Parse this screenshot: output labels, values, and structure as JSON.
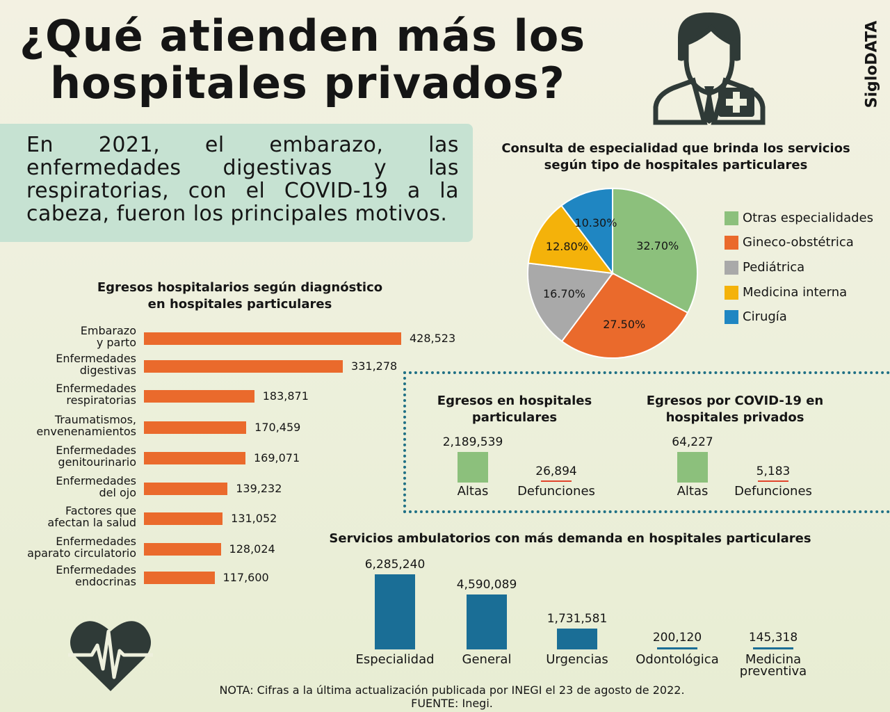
{
  "title": {
    "line1": "¿Qué atienden más los",
    "line2": "hospitales privados?"
  },
  "brand": "SigloDATA",
  "icons": {
    "doctor": "doctor-icon",
    "heart": "heartbeat-icon"
  },
  "lead": "En 2021, el embarazo, las enfermedades digestivas y las respiratorias, con el COVID-19 a la cabeza, fueron los principales motivos.",
  "chart_data": [
    {
      "type": "pie",
      "title": "Consulta de especialidad que brinda los servicios según tipo de hospitales particulares",
      "categories": [
        "Otras especialidades",
        "Gineco-obstétrica",
        "Pediátrica",
        "Medicina interna",
        "Cirugía"
      ],
      "values": [
        32.7,
        27.5,
        16.7,
        12.8,
        10.3
      ],
      "labels": [
        "32.70%",
        "27.50%",
        "16.70%",
        "12.80%",
        "10.30%"
      ],
      "colors": [
        "#8cc07c",
        "#ea6a2c",
        "#a9a9a9",
        "#f4b20a",
        "#1f86c2"
      ],
      "legend": "right"
    },
    {
      "type": "bar",
      "orientation": "horizontal",
      "title": "Egresos hospitalarios según diagnóstico en hospitales particulares",
      "categories": [
        "Embarazo y parto",
        "Enfermedades digestivas",
        "Enfermedades respiratorias",
        "Traumatismos, envenenamientos",
        "Enfermedades genitourinario",
        "Enfermedades del ojo",
        "Factores que afectan la salud",
        "Enfermedades aparato circulatorio",
        "Enfermedades endocrinas"
      ],
      "label_lines": [
        [
          "Embarazo",
          "y parto"
        ],
        [
          "Enfermedades",
          "digestivas"
        ],
        [
          "Enfermedades",
          "respiratorias"
        ],
        [
          "Traumatismos,",
          "envenenamientos"
        ],
        [
          "Enfermedades",
          "genitourinario"
        ],
        [
          "Enfermedades",
          "del ojo"
        ],
        [
          "Factores que",
          "afectan la salud"
        ],
        [
          "Enfermedades",
          "aparato circulatorio"
        ],
        [
          "Enfermedades",
          "endocrinas"
        ]
      ],
      "values": [
        428523,
        331278,
        183871,
        170459,
        169071,
        139232,
        131052,
        128024,
        117600
      ],
      "value_labels": [
        "428,523",
        "331,278",
        "183,871",
        "170,459",
        "169,071",
        "139,232",
        "131,052",
        "128,024",
        "117,600"
      ],
      "color": "#ea6a2c"
    },
    {
      "type": "bar",
      "title": "Egresos en hospitales particulares",
      "categories": [
        "Altas",
        "Defunciones"
      ],
      "values": [
        2189539,
        26894
      ],
      "value_labels": [
        "2,189,539",
        "26,894"
      ],
      "colors": [
        "#8cc07c",
        "#e1442c"
      ]
    },
    {
      "type": "bar",
      "title": "Egresos por COVID-19 en hospitales privados",
      "categories": [
        "Altas",
        "Defunciones"
      ],
      "values": [
        64227,
        5183
      ],
      "value_labels": [
        "64,227",
        "5,183"
      ],
      "colors": [
        "#8cc07c",
        "#e1442c"
      ]
    },
    {
      "type": "bar",
      "title": "Servicios ambulatorios con más demanda en hospitales particulares",
      "categories": [
        "Especialidad",
        "General",
        "Urgencias",
        "Odontológica",
        "Medicina preventiva"
      ],
      "label_lines": [
        [
          "Especialidad"
        ],
        [
          "General"
        ],
        [
          "Urgencias"
        ],
        [
          "Odontológica"
        ],
        [
          "Medicina",
          "preventiva"
        ]
      ],
      "values": [
        6285240,
        4590089,
        1731581,
        200120,
        145318
      ],
      "value_labels": [
        "6,285,240",
        "4,590,089",
        "1,731,581",
        "200,120",
        "145,318"
      ],
      "color": "#1a6e96"
    }
  ],
  "pie_title_lines": [
    "Consulta de especialidad que brinda los servicios",
    "según tipo de hospitales particulares"
  ],
  "hbar_title_lines": [
    "Egresos hospitalarios según diagnóstico",
    "en hospitales particulares"
  ],
  "egr_title_lines": [
    "Egresos en hospitales",
    "particulares"
  ],
  "covid_title_lines": [
    "Egresos por COVID-19 en",
    "hospitales privados"
  ],
  "amb_title": "Servicios ambulatorios con más demanda en hospitales particulares",
  "note": {
    "line1": "NOTA: Cifras a la última actualización publicada por INEGI el 23 de agosto de 2022.",
    "line2": "FUENTE: Inegi."
  }
}
